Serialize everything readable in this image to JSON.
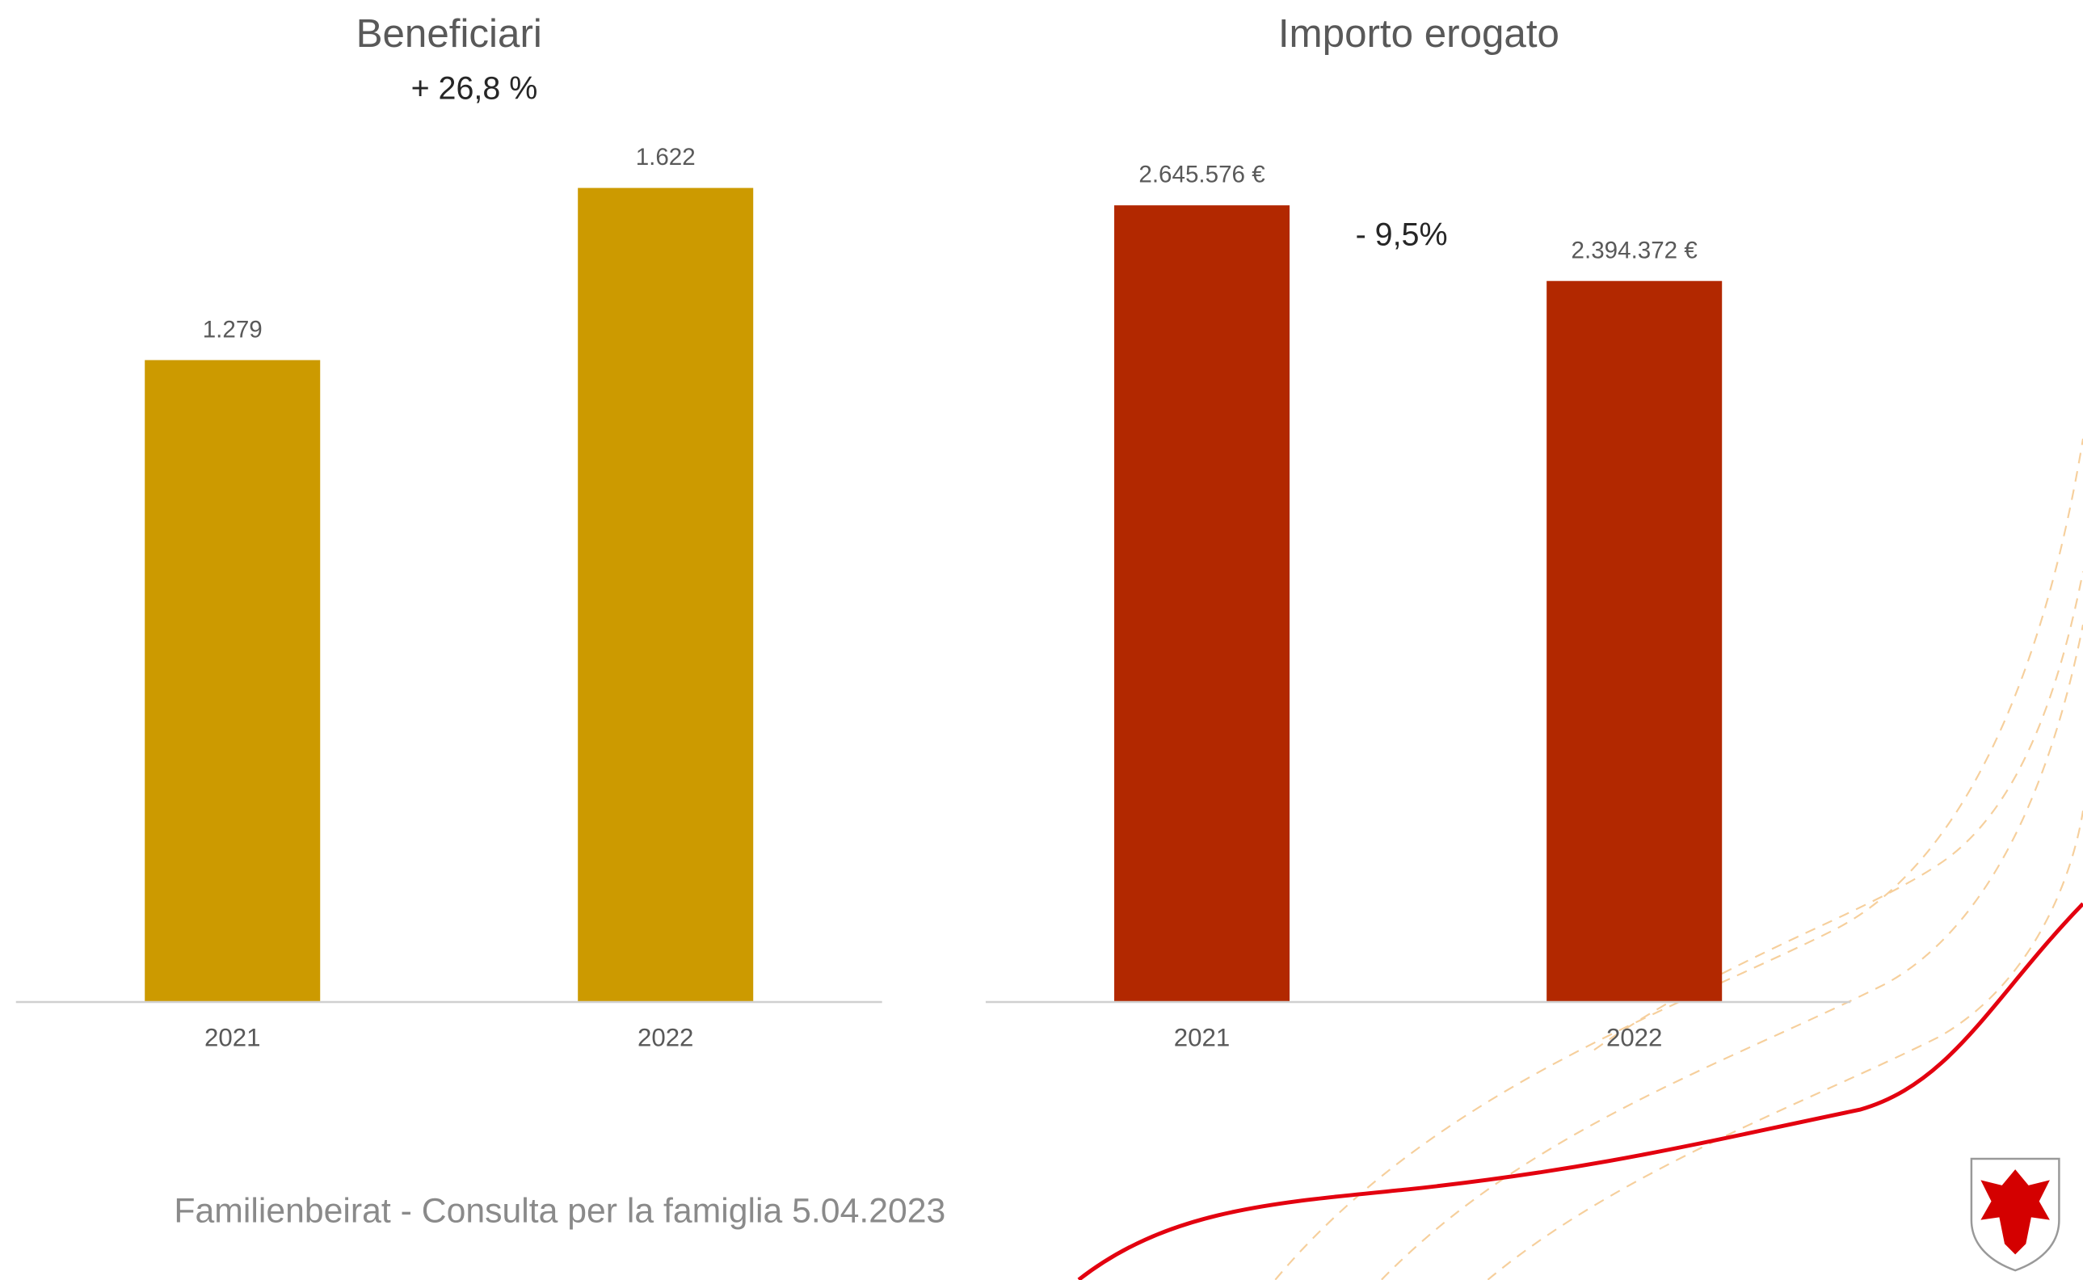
{
  "chart_data": [
    {
      "type": "bar",
      "title": "Beneficiari",
      "annotation": "+ 26,8 %",
      "categories": [
        "2021",
        "2022"
      ],
      "values": [
        1279,
        1622
      ],
      "value_labels": [
        "1.279",
        "1.622"
      ],
      "color": "#cc9a00",
      "ylim": [
        0,
        1800
      ]
    },
    {
      "type": "bar",
      "title": "Importo erogato",
      "annotation": "- 9,5%",
      "categories": [
        "2021",
        "2022"
      ],
      "values": [
        2645576,
        2394372
      ],
      "value_labels": [
        "2.645.576 €",
        "2.394.372 €"
      ],
      "color": "#b22800",
      "ylim": [
        0,
        3000000
      ]
    }
  ],
  "footer": "Familienbeirat - Consulta per la famiglia 5.04.2023"
}
